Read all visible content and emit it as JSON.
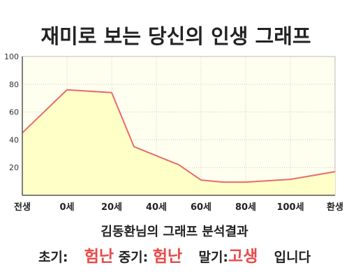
{
  "chart_data": {
    "type": "area",
    "title": "재미로 보는 당신의 인생 그래프",
    "x_ticks": [
      "전생",
      "0세",
      "20세",
      "40세",
      "60세",
      "80세",
      "100세",
      "환생"
    ],
    "x": [
      "전생",
      "0세",
      "20세",
      "35세",
      "50세",
      "60세",
      "70세",
      "80세",
      "100세",
      "환생"
    ],
    "y": [
      45,
      76,
      74,
      35,
      22,
      11,
      9.5,
      9.5,
      11.5,
      17
    ],
    "y_ticks": [
      20,
      40,
      60,
      80,
      100
    ],
    "ylim": [
      0,
      100
    ],
    "grid": true,
    "colors": {
      "line": "#e86a6a",
      "fill": "#ffffc8",
      "plot_bg": "#fffff0",
      "grid": "#c8c8c8"
    }
  },
  "summary": {
    "caption": "김동환님의 그래프 분석결과",
    "early_label": "초기:",
    "early_value": "험난",
    "mid_label": "중기:",
    "mid_value": "험난",
    "late_label": "말기:",
    "late_value": "고생",
    "ending": "입니다"
  }
}
